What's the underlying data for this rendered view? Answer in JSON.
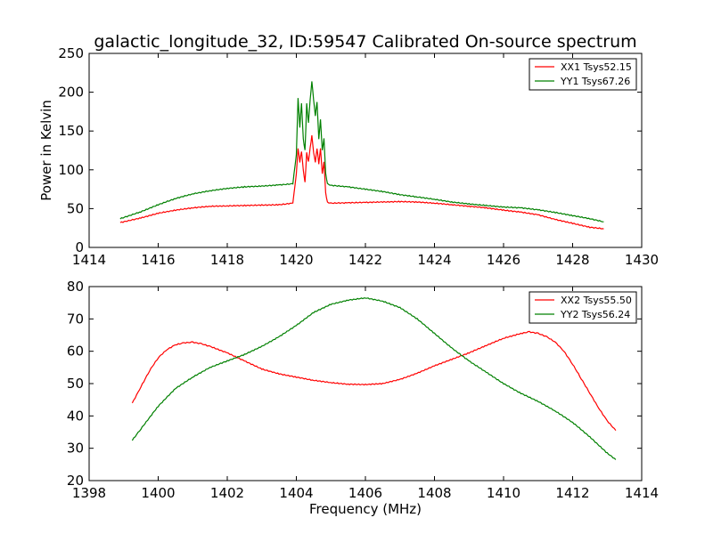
{
  "chart_data": [
    {
      "type": "line",
      "title": "galactic_longitude_32, ID:59547 Calibrated On-source spectrum",
      "xlabel": "",
      "ylabel": "Power in Kelvin",
      "xlim": [
        1414,
        1430
      ],
      "ylim": [
        0,
        250
      ],
      "xticks": [
        "1414",
        "1416",
        "1418",
        "1420",
        "1422",
        "1424",
        "1426",
        "1428",
        "1430"
      ],
      "yticks": [
        "0",
        "50",
        "100",
        "150",
        "200",
        "250"
      ],
      "grid": false,
      "legend": "top-right",
      "series": [
        {
          "name": "XX1 Tsys52.15",
          "color": "#ff0000",
          "x": [
            1414.9,
            1415.5,
            1416.0,
            1416.5,
            1417.0,
            1417.5,
            1418.0,
            1418.5,
            1419.0,
            1419.5,
            1419.9,
            1420.0,
            1420.05,
            1420.1,
            1420.15,
            1420.2,
            1420.25,
            1420.3,
            1420.35,
            1420.4,
            1420.45,
            1420.5,
            1420.55,
            1420.6,
            1420.65,
            1420.7,
            1420.75,
            1420.8,
            1420.85,
            1420.9,
            1421.0,
            1421.5,
            1422.0,
            1422.5,
            1423.0,
            1423.5,
            1424.0,
            1424.5,
            1425.0,
            1425.5,
            1426.0,
            1426.5,
            1427.0,
            1427.5,
            1428.0,
            1428.5,
            1428.9
          ],
          "y": [
            32,
            38,
            44,
            48,
            51,
            53,
            53.5,
            54,
            54.5,
            55,
            57,
            95,
            128,
            110,
            124,
            100,
            84,
            122,
            110,
            128,
            144,
            122,
            110,
            128,
            108,
            128,
            95,
            110,
            70,
            58,
            57,
            57.5,
            58,
            58.5,
            59,
            58.5,
            57,
            55,
            53,
            51,
            48,
            45.5,
            42,
            36,
            31,
            26,
            24
          ]
        },
        {
          "name": "YY1 Tsys67.26",
          "color": "#008000",
          "x": [
            1414.9,
            1415.5,
            1416.0,
            1416.5,
            1417.0,
            1417.5,
            1418.0,
            1418.5,
            1419.0,
            1419.5,
            1419.9,
            1420.0,
            1420.05,
            1420.1,
            1420.15,
            1420.2,
            1420.25,
            1420.3,
            1420.35,
            1420.4,
            1420.45,
            1420.5,
            1420.55,
            1420.6,
            1420.65,
            1420.7,
            1420.75,
            1420.8,
            1420.85,
            1420.9,
            1421.0,
            1421.5,
            1422.0,
            1422.5,
            1423.0,
            1423.5,
            1424.0,
            1424.5,
            1425.0,
            1425.5,
            1426.0,
            1426.5,
            1427.0,
            1427.5,
            1428.0,
            1428.5,
            1428.9
          ],
          "y": [
            37,
            46,
            55,
            63,
            69,
            73,
            76,
            78,
            79,
            80.5,
            82,
            120,
            193,
            155,
            186,
            140,
            125,
            185,
            160,
            190,
            214,
            190,
            170,
            188,
            140,
            165,
            125,
            140,
            95,
            82,
            80,
            78,
            75,
            72,
            68,
            65,
            62,
            58.5,
            56,
            54,
            52,
            51,
            48.5,
            45,
            41,
            37,
            33
          ]
        }
      ]
    },
    {
      "type": "line",
      "title": "",
      "xlabel": "Frequency (MHz)",
      "ylabel": "",
      "xlim": [
        1398,
        1414
      ],
      "ylim": [
        20,
        80
      ],
      "xticks": [
        "1398",
        "1400",
        "1402",
        "1404",
        "1406",
        "1408",
        "1410",
        "1412",
        "1414"
      ],
      "yticks": [
        "20",
        "30",
        "40",
        "50",
        "60",
        "70",
        "80"
      ],
      "grid": false,
      "legend": "top-right",
      "series": [
        {
          "name": "XX2 Tsys55.50",
          "color": "#ff0000",
          "x": [
            1399.25,
            1399.5,
            1399.75,
            1400.0,
            1400.25,
            1400.5,
            1400.75,
            1401.0,
            1401.25,
            1401.5,
            1402.0,
            1402.5,
            1403.0,
            1403.5,
            1404.0,
            1404.5,
            1405.0,
            1405.5,
            1406.0,
            1406.5,
            1407.0,
            1407.5,
            1408.0,
            1408.5,
            1409.0,
            1409.5,
            1410.0,
            1410.5,
            1410.75,
            1411.0,
            1411.25,
            1411.5,
            1411.75,
            1412.0,
            1412.25,
            1412.5,
            1412.75,
            1413.0,
            1413.25
          ],
          "y": [
            44,
            49,
            54,
            58,
            60.5,
            62,
            62.6,
            62.8,
            62.3,
            61.5,
            59.5,
            57,
            54.5,
            53,
            52,
            51,
            50.3,
            49.8,
            49.7,
            50,
            51.3,
            53.2,
            55.5,
            57.5,
            59.5,
            61.8,
            64,
            65.5,
            66,
            65.5,
            64.5,
            62.8,
            60,
            56,
            51.5,
            47,
            42.5,
            38.5,
            35.5
          ]
        },
        {
          "name": "YY2 Tsys56.24",
          "color": "#008000",
          "x": [
            1399.25,
            1399.5,
            1400.0,
            1400.5,
            1401.0,
            1401.5,
            1402.0,
            1402.5,
            1403.0,
            1403.5,
            1404.0,
            1404.5,
            1405.0,
            1405.5,
            1406.0,
            1406.5,
            1407.0,
            1407.5,
            1408.0,
            1408.5,
            1409.0,
            1409.5,
            1410.0,
            1410.5,
            1411.0,
            1411.5,
            1412.0,
            1412.5,
            1413.0,
            1413.25
          ],
          "y": [
            32.5,
            36,
            43,
            48.5,
            52,
            55,
            57,
            59,
            61.5,
            64.5,
            68,
            72,
            74.5,
            75.8,
            76.5,
            75.5,
            73.5,
            70,
            65.5,
            61,
            57,
            53.5,
            50,
            47,
            44.5,
            41.5,
            38,
            33.5,
            28.5,
            26.5
          ]
        }
      ]
    }
  ]
}
